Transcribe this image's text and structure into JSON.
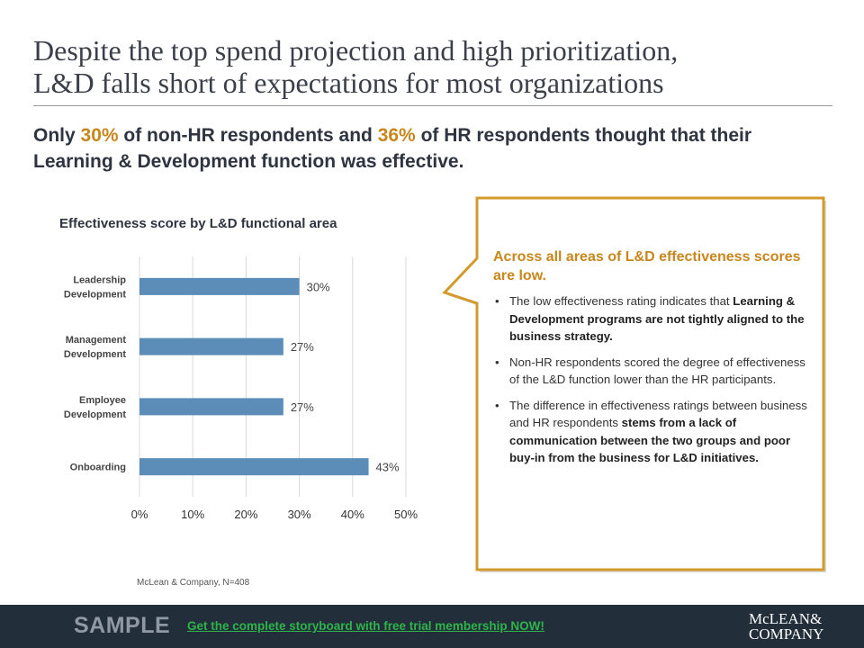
{
  "header": {
    "title_line1": "Despite the top spend projection and high prioritization,",
    "title_line2": "L&D falls short of expectations for most organizations"
  },
  "subtitle": {
    "part1": "Only ",
    "pct1": "30%",
    "part2": " of non-HR respondents and ",
    "pct2": "36%",
    "part3": " of HR respondents thought that their Learning & Development function was effective."
  },
  "chart_data": {
    "type": "bar",
    "orientation": "horizontal",
    "title": "Effectiveness score by L&D functional area",
    "categories": [
      [
        "Leadership",
        "Development"
      ],
      [
        "Management",
        "Development"
      ],
      [
        "Employee",
        "Development"
      ],
      [
        "Onboarding"
      ]
    ],
    "values": [
      30,
      27,
      27,
      43
    ],
    "value_labels": [
      "30%",
      "27%",
      "27%",
      "43%"
    ],
    "xlim": [
      0,
      50
    ],
    "xticks": [
      "0%",
      "10%",
      "20%",
      "30%",
      "40%",
      "50%"
    ],
    "grid": true,
    "bar_color": "#5b8db8"
  },
  "source": "McLean & Company, N=408",
  "callout": {
    "heading": "Across all areas of L&D effectiveness scores are low.",
    "bullets": [
      {
        "plain": "The low effectiveness rating indicates that ",
        "bold": "Learning & Development programs are not tightly aligned to the business strategy."
      },
      {
        "plain": "Non-HR respondents scored the degree of effectiveness of the L&D function lower than the HR participants.",
        "bold": ""
      },
      {
        "plain": "The difference in effectiveness ratings between business and HR respondents ",
        "bold": "stems from a lack of communication between the two groups and poor buy-in from the business for L&D initiatives."
      }
    ],
    "border_color": "#d39a2c"
  },
  "footer": {
    "sample": "SAMPLE",
    "cta": "Get the complete storyboard with free trial membership NOW!",
    "brand_line1": "McLEAN&",
    "brand_line2": "COMPANY"
  },
  "colors": {
    "accent": "#c8861d",
    "footer_bg": "#222e3a",
    "cta": "#2fb34a"
  }
}
